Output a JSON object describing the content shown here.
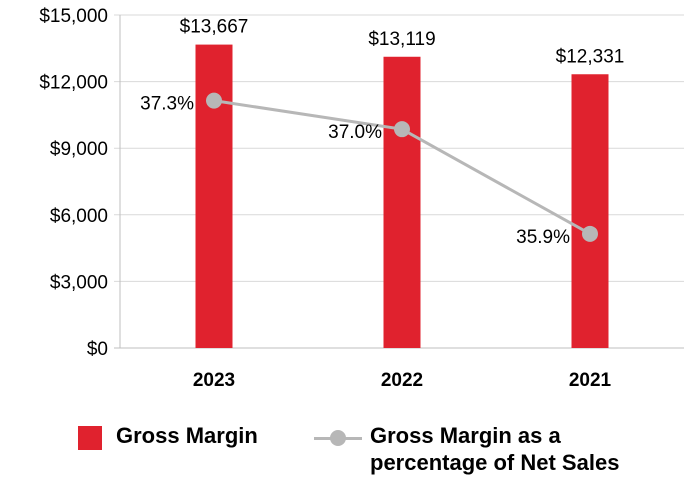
{
  "chart_data": {
    "type": "bar",
    "categories": [
      "2023",
      "2022",
      "2021"
    ],
    "series": [
      {
        "name": "Gross Margin",
        "kind": "bar",
        "values": [
          13667,
          13119,
          12331
        ],
        "color": "#e0222e"
      },
      {
        "name": "Gross Margin as a percentage of Net Sales",
        "kind": "line",
        "values": [
          37.3,
          37.0,
          35.9
        ],
        "color": "#b7b7b7"
      }
    ],
    "bar_labels": [
      "$13,667",
      "$13,119",
      "$12,331"
    ],
    "line_labels": [
      "37.3%",
      "37.0%",
      "35.9%"
    ],
    "y_ticks": [
      "$0",
      "$3,000",
      "$6,000",
      "$9,000",
      "$12,000",
      "$15,000"
    ],
    "ylim": [
      0,
      15000
    ],
    "secondary_ylim": [
      34.7,
      38.2
    ],
    "grid": true,
    "legend_position": "bottom"
  },
  "legend": {
    "bar_label": "Gross Margin",
    "line_label_1": "Gross Margin as a",
    "line_label_2": "percentage of Net Sales"
  }
}
